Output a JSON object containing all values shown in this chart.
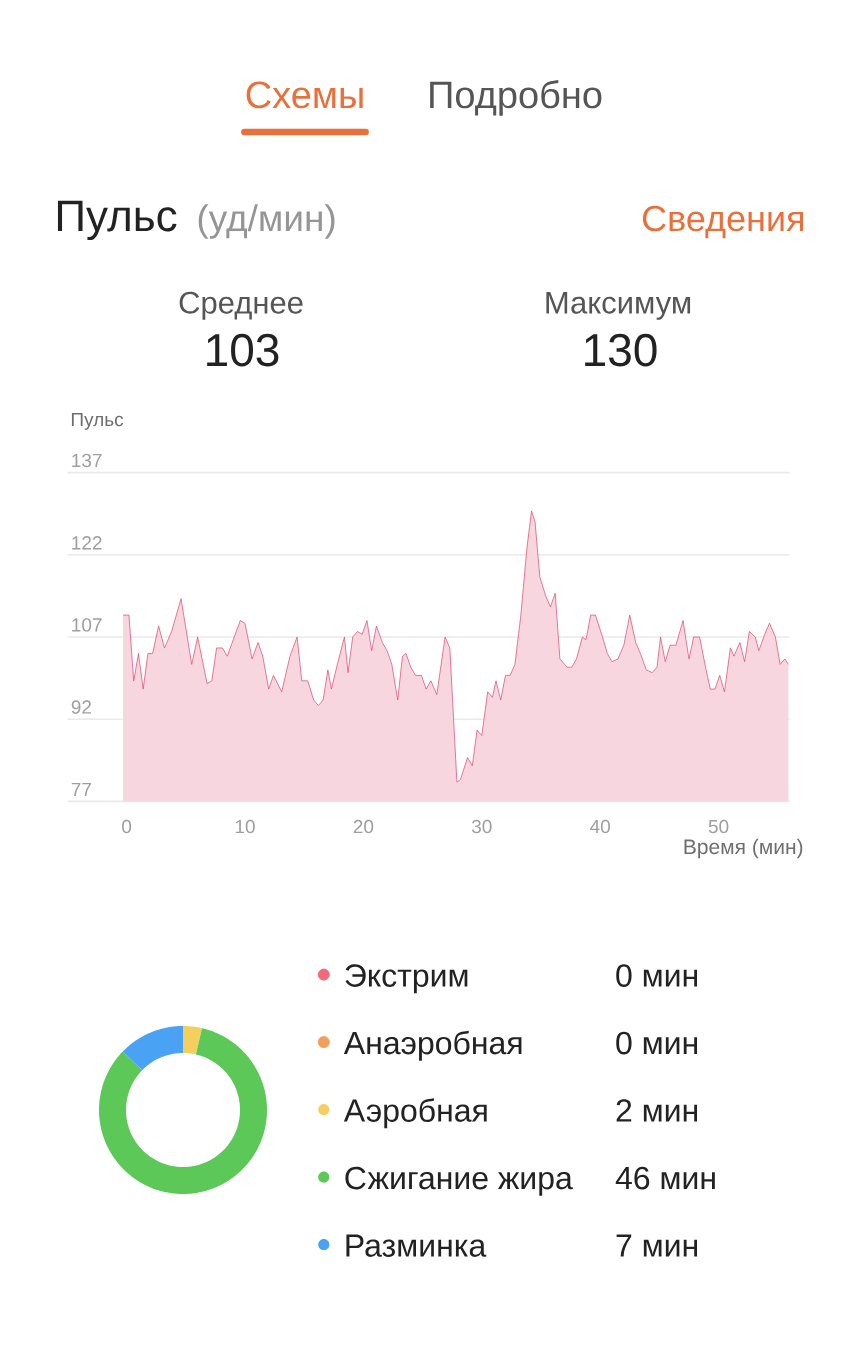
{
  "chart_data": [
    {
      "type": "area",
      "title": "Пульс",
      "subtitle": "(уд/мин)",
      "annotations": [
        "Схемы",
        "Подробно",
        "Сведения",
        "Среднее",
        "103",
        "Максимум",
        "130"
      ],
      "ylabel": "Пульс",
      "xlabel": "Время (мин)",
      "x": [
        -0.3,
        0.2,
        0.6,
        1.0,
        1.4,
        1.8,
        2.2,
        2.7,
        3.2,
        3.8,
        4.6,
        5.5,
        6.0,
        6.8,
        7.2,
        7.6,
        8.1,
        8.5,
        9.6,
        10.0,
        10.6,
        11.1,
        11.5,
        12.0,
        12.4,
        13.1,
        13.8,
        14.4,
        14.8,
        15.3,
        15.8,
        16.2,
        16.6,
        17.0,
        17.3,
        17.8,
        18.4,
        18.7,
        19.1,
        19.5,
        19.9,
        20.3,
        20.7,
        21.1,
        21.6,
        22.0,
        22.4,
        22.9,
        23.3,
        23.6,
        24.0,
        24.4,
        24.9,
        25.3,
        25.7,
        26.2,
        26.9,
        27.3,
        27.9,
        28.2,
        28.8,
        29.2,
        29.6,
        30.0,
        30.5,
        30.9,
        31.2,
        31.6,
        32.0,
        32.4,
        32.8,
        33.3,
        33.8,
        34.2,
        34.5,
        34.9,
        35.4,
        35.8,
        36.2,
        36.6,
        37.2,
        37.6,
        38.0,
        38.5,
        38.8,
        39.2,
        39.6,
        40.2,
        40.6,
        41.0,
        41.5,
        42.0,
        42.5,
        43.0,
        43.4,
        43.9,
        44.4,
        44.8,
        45.1,
        45.5,
        45.9,
        46.4,
        47.0,
        47.5,
        47.9,
        48.4,
        48.9,
        49.3,
        49.7,
        50.1,
        50.5,
        51.0,
        51.3,
        51.8,
        52.2,
        52.6,
        53.1,
        53.4,
        53.9,
        54.3,
        54.8,
        55.2,
        55.6,
        55.9
      ],
      "values": [
        111,
        111,
        99,
        104,
        97.5,
        104,
        104,
        109,
        105,
        108,
        114,
        102,
        107,
        98.5,
        99,
        105,
        105,
        103.5,
        110,
        109.5,
        103,
        106,
        103.5,
        97.5,
        100,
        97,
        103.5,
        107,
        99,
        99,
        95.5,
        94.5,
        95.5,
        101,
        97.5,
        102,
        107,
        100.5,
        107,
        108,
        107.5,
        110,
        104.5,
        109,
        106,
        104.5,
        102,
        95.5,
        103.5,
        104,
        101.5,
        100,
        100,
        97.5,
        99,
        96.5,
        107,
        105,
        80.5,
        81,
        85,
        83.5,
        90,
        89,
        97,
        96,
        99,
        95.5,
        100,
        100,
        102,
        111,
        123,
        130,
        128,
        118,
        114.5,
        112.5,
        115,
        103,
        101.5,
        101.5,
        103,
        107,
        106.5,
        111,
        111,
        107,
        104,
        102.5,
        103,
        105.5,
        111,
        106,
        104,
        101,
        100.5,
        101.5,
        107,
        102.5,
        105.5,
        105.5,
        110,
        103,
        107,
        107,
        101.5,
        97.5,
        97.5,
        100,
        97,
        105,
        103.5,
        106,
        102.5,
        108,
        107,
        104.5,
        107.5,
        109.5,
        107,
        102,
        103,
        102
      ],
      "color": "#e0446c",
      "xlim": [
        -5,
        56
      ],
      "xticks": [
        0,
        10,
        20,
        30,
        40,
        50
      ],
      "ylim": [
        77,
        137
      ],
      "yticks": [
        77,
        92,
        107,
        122,
        137
      ],
      "grid": "y"
    },
    {
      "type": "donut",
      "categories": [
        "Экстрим",
        "Анаэробная",
        "Аэробная",
        "Сжигание жира",
        "Разминка"
      ],
      "values": [
        0,
        0,
        2,
        46,
        7
      ],
      "colors": [
        "#f2697a",
        "#f0a05a",
        "#f4cf5e",
        "#5cc858",
        "#4aa2f4"
      ],
      "value_labels": [
        "0 мин",
        "0 мин",
        "2 мин",
        "46 мин",
        "7 мин"
      ],
      "legend": "right"
    }
  ]
}
